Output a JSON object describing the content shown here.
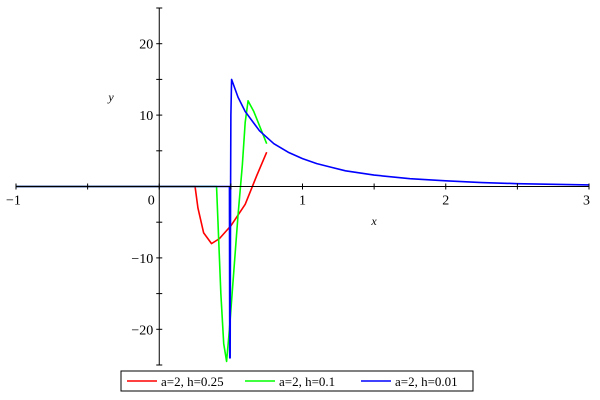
{
  "chart_data": {
    "type": "line",
    "title": "",
    "xlabel": "x",
    "ylabel": "y",
    "xlim": [
      -1,
      3
    ],
    "ylim": [
      -25,
      25
    ],
    "x_ticks": [
      -1,
      0,
      1,
      2,
      3
    ],
    "x_tick_labels": [
      "−1",
      "0",
      "1",
      "2",
      "3"
    ],
    "y_ticks": [
      -20,
      -10,
      10,
      20
    ],
    "y_tick_labels": [
      "−20",
      "−10",
      "10",
      "20"
    ],
    "grid": false,
    "legend_position": "bottom",
    "series": [
      {
        "name": "a=2, h=0.25",
        "color": "#ff0000",
        "points": [
          [
            -1,
            0
          ],
          [
            0.25,
            0
          ],
          [
            0.27,
            -3
          ],
          [
            0.31,
            -6.5
          ],
          [
            0.365,
            -8
          ],
          [
            0.42,
            -7.3
          ],
          [
            0.5,
            -5.5
          ],
          [
            0.6,
            -2.5
          ],
          [
            0.68,
            1.5
          ],
          [
            0.75,
            4.8
          ]
        ]
      },
      {
        "name": "a=2, h=0.1",
        "color": "#00ff00",
        "points": [
          [
            -1,
            0
          ],
          [
            0.4,
            0
          ],
          [
            0.41,
            -5
          ],
          [
            0.43,
            -15
          ],
          [
            0.45,
            -22
          ],
          [
            0.47,
            -24.5
          ],
          [
            0.49,
            -20
          ],
          [
            0.52,
            -12
          ],
          [
            0.55,
            -4
          ],
          [
            0.58,
            3
          ],
          [
            0.6,
            9
          ],
          [
            0.62,
            12
          ],
          [
            0.66,
            10.5
          ],
          [
            0.75,
            6
          ]
        ]
      },
      {
        "name": "a=2, h=0.01",
        "color": "#0000ff",
        "points": [
          [
            -1,
            0
          ],
          [
            0.49,
            0
          ],
          [
            0.492,
            -24
          ],
          [
            0.495,
            -24
          ],
          [
            0.498,
            0
          ],
          [
            0.5,
            10
          ],
          [
            0.505,
            15
          ],
          [
            0.55,
            12.5
          ],
          [
            0.6,
            10.5
          ],
          [
            0.7,
            7.8
          ],
          [
            0.8,
            6
          ],
          [
            0.9,
            4.8
          ],
          [
            1.0,
            3.9
          ],
          [
            1.1,
            3.2
          ],
          [
            1.2,
            2.7
          ],
          [
            1.3,
            2.2
          ],
          [
            1.5,
            1.6
          ],
          [
            1.75,
            1.1
          ],
          [
            2.0,
            0.8
          ],
          [
            2.25,
            0.55
          ],
          [
            2.5,
            0.4
          ],
          [
            2.75,
            0.3
          ],
          [
            3.0,
            0.22
          ]
        ]
      }
    ]
  }
}
